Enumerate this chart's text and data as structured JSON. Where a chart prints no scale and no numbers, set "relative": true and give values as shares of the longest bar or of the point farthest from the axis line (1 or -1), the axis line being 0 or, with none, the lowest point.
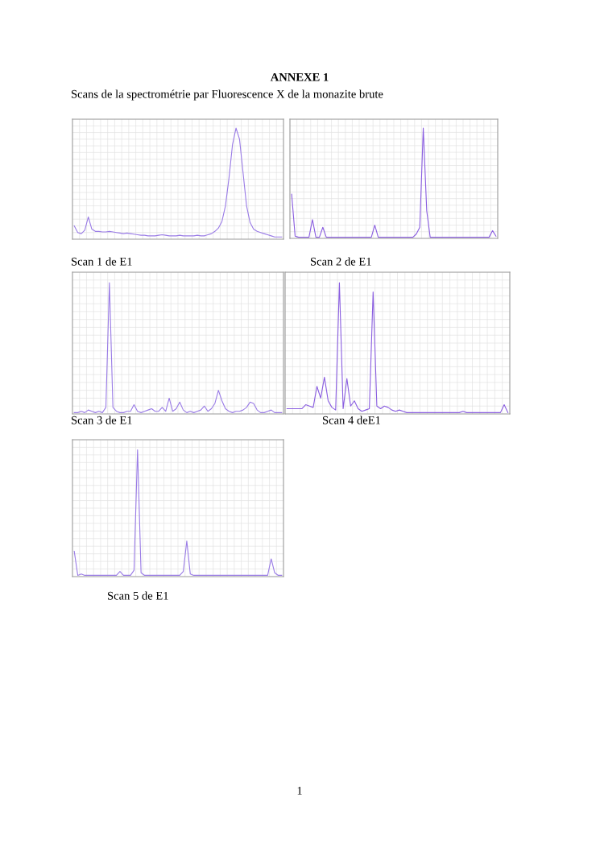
{
  "chart_data": [
    {
      "type": "line",
      "title": "Scan 1 de E1",
      "annotations": [
        "ANNEXE 1",
        "Scans de la spectrométrie par Fluorescence X de la monazite brute",
        "1"
      ],
      "relative": true,
      "grid": true,
      "tick_labels": false,
      "categories": [
        null,
        null,
        null,
        null,
        null,
        null,
        null,
        null,
        null,
        null,
        null,
        null,
        null,
        null,
        null,
        null,
        null,
        null,
        null,
        null,
        null,
        null,
        null,
        null,
        null,
        null,
        null,
        null,
        null,
        null,
        null,
        null,
        null,
        null,
        null,
        null,
        null,
        null,
        null,
        null,
        null,
        null,
        null,
        null,
        null,
        null,
        null,
        null,
        null,
        null,
        null,
        null,
        null,
        null,
        null,
        null,
        null,
        null,
        null,
        null
      ],
      "series": [
        {
          "color": "#9a7ce6",
          "values": [
            0.12,
            0.06,
            0.05,
            0.08,
            0.2,
            0.09,
            0.07,
            0.07,
            0.065,
            0.065,
            0.07,
            0.065,
            0.06,
            0.055,
            0.05,
            0.055,
            0.05,
            0.045,
            0.04,
            0.035,
            0.035,
            0.03,
            0.03,
            0.03,
            0.035,
            0.04,
            0.035,
            0.03,
            0.03,
            0.03,
            0.035,
            0.03,
            0.03,
            0.03,
            0.03,
            0.035,
            0.03,
            0.03,
            0.04,
            0.05,
            0.07,
            0.1,
            0.16,
            0.3,
            0.55,
            0.85,
            1.0,
            0.9,
            0.6,
            0.3,
            0.15,
            0.09,
            0.07,
            0.06,
            0.05,
            0.04,
            0.03,
            0.02,
            0.02,
            0.02
          ]
        }
      ]
    },
    {
      "type": "line",
      "title": "Scan 2 de E1",
      "relative": true,
      "grid": true,
      "tick_labels": false,
      "categories": [
        null,
        null,
        null,
        null,
        null,
        null,
        null,
        null,
        null,
        null,
        null,
        null,
        null,
        null,
        null,
        null,
        null,
        null,
        null,
        null,
        null,
        null,
        null,
        null,
        null,
        null,
        null,
        null,
        null,
        null,
        null,
        null,
        null,
        null,
        null,
        null,
        null,
        null,
        null,
        null,
        null,
        null,
        null,
        null,
        null,
        null,
        null,
        null,
        null,
        null,
        null,
        null,
        null,
        null,
        null,
        null,
        null,
        null,
        null,
        null
      ],
      "series": [
        {
          "color": "#8a5ee0",
          "values": [
            0.4,
            0.02,
            0.01,
            0.01,
            0.01,
            0.01,
            0.17,
            0.01,
            0.01,
            0.1,
            0.01,
            0.01,
            0.01,
            0.01,
            0.01,
            0.01,
            0.01,
            0.01,
            0.01,
            0.01,
            0.01,
            0.01,
            0.01,
            0.01,
            0.12,
            0.01,
            0.01,
            0.01,
            0.01,
            0.01,
            0.01,
            0.01,
            0.01,
            0.01,
            0.01,
            0.01,
            0.04,
            0.1,
            1.0,
            0.25,
            0.01,
            0.01,
            0.01,
            0.01,
            0.01,
            0.01,
            0.01,
            0.01,
            0.01,
            0.01,
            0.01,
            0.01,
            0.01,
            0.01,
            0.01,
            0.01,
            0.01,
            0.01,
            0.07,
            0.02
          ]
        }
      ]
    },
    {
      "type": "line",
      "title": "Scan 3 de E1",
      "relative": true,
      "grid": true,
      "tick_labels": false,
      "categories": [
        null,
        null,
        null,
        null,
        null,
        null,
        null,
        null,
        null,
        null,
        null,
        null,
        null,
        null,
        null,
        null,
        null,
        null,
        null,
        null,
        null,
        null,
        null,
        null,
        null,
        null,
        null,
        null,
        null,
        null,
        null,
        null,
        null,
        null,
        null,
        null,
        null,
        null,
        null,
        null,
        null,
        null,
        null,
        null,
        null,
        null,
        null,
        null,
        null,
        null,
        null,
        null,
        null,
        null,
        null,
        null,
        null,
        null,
        null,
        null
      ],
      "series": [
        {
          "color": "#9a7ce6",
          "values": [
            0.01,
            0.01,
            0.02,
            0.01,
            0.03,
            0.02,
            0.01,
            0.02,
            0.01,
            0.05,
            1.0,
            0.05,
            0.02,
            0.01,
            0.01,
            0.02,
            0.02,
            0.07,
            0.02,
            0.01,
            0.02,
            0.03,
            0.04,
            0.02,
            0.02,
            0.05,
            0.02,
            0.12,
            0.02,
            0.04,
            0.09,
            0.03,
            0.01,
            0.02,
            0.01,
            0.02,
            0.03,
            0.06,
            0.02,
            0.04,
            0.08,
            0.18,
            0.1,
            0.04,
            0.02,
            0.01,
            0.02,
            0.02,
            0.03,
            0.05,
            0.09,
            0.08,
            0.03,
            0.01,
            0.01,
            0.02,
            0.03,
            0.01,
            0.01,
            0.01
          ]
        }
      ]
    },
    {
      "type": "line",
      "title": "Scan 4 deE1",
      "relative": true,
      "grid": true,
      "tick_labels": false,
      "categories": [
        null,
        null,
        null,
        null,
        null,
        null,
        null,
        null,
        null,
        null,
        null,
        null,
        null,
        null,
        null,
        null,
        null,
        null,
        null,
        null,
        null,
        null,
        null,
        null,
        null,
        null,
        null,
        null,
        null,
        null,
        null,
        null,
        null,
        null,
        null,
        null,
        null,
        null,
        null,
        null,
        null,
        null,
        null,
        null,
        null,
        null,
        null,
        null,
        null,
        null,
        null,
        null,
        null,
        null,
        null,
        null,
        null,
        null,
        null,
        null
      ],
      "series": [
        {
          "color": "#8a5ee0",
          "values": [
            0.04,
            0.04,
            0.04,
            0.04,
            0.04,
            0.07,
            0.06,
            0.05,
            0.21,
            0.12,
            0.28,
            0.1,
            0.05,
            0.03,
            1.0,
            0.04,
            0.27,
            0.06,
            0.1,
            0.04,
            0.02,
            0.03,
            0.04,
            0.93,
            0.06,
            0.04,
            0.06,
            0.05,
            0.03,
            0.02,
            0.03,
            0.02,
            0.01,
            0.01,
            0.01,
            0.01,
            0.01,
            0.01,
            0.01,
            0.01,
            0.01,
            0.01,
            0.01,
            0.01,
            0.01,
            0.01,
            0.01,
            0.02,
            0.01,
            0.01,
            0.01,
            0.01,
            0.01,
            0.01,
            0.01,
            0.01,
            0.01,
            0.01,
            0.07,
            0.01
          ]
        }
      ]
    },
    {
      "type": "line",
      "title": "Scan 5 de E1",
      "relative": true,
      "grid": true,
      "tick_labels": false,
      "categories": [
        null,
        null,
        null,
        null,
        null,
        null,
        null,
        null,
        null,
        null,
        null,
        null,
        null,
        null,
        null,
        null,
        null,
        null,
        null,
        null,
        null,
        null,
        null,
        null,
        null,
        null,
        null,
        null,
        null,
        null,
        null,
        null,
        null,
        null,
        null,
        null,
        null,
        null,
        null,
        null,
        null,
        null,
        null,
        null,
        null,
        null,
        null,
        null,
        null,
        null,
        null,
        null,
        null,
        null,
        null,
        null,
        null,
        null,
        null,
        null
      ],
      "series": [
        {
          "color": "#9a7ce6",
          "values": [
            0.2,
            0.01,
            0.02,
            0.01,
            0.01,
            0.01,
            0.01,
            0.01,
            0.01,
            0.01,
            0.01,
            0.01,
            0.01,
            0.04,
            0.01,
            0.01,
            0.01,
            0.05,
            1.0,
            0.03,
            0.01,
            0.01,
            0.01,
            0.01,
            0.01,
            0.01,
            0.01,
            0.01,
            0.01,
            0.01,
            0.01,
            0.04,
            0.28,
            0.02,
            0.01,
            0.01,
            0.01,
            0.01,
            0.01,
            0.01,
            0.01,
            0.01,
            0.01,
            0.01,
            0.01,
            0.01,
            0.01,
            0.01,
            0.01,
            0.01,
            0.01,
            0.01,
            0.01,
            0.01,
            0.01,
            0.01,
            0.14,
            0.03,
            0.01,
            0.01
          ]
        }
      ]
    }
  ]
}
